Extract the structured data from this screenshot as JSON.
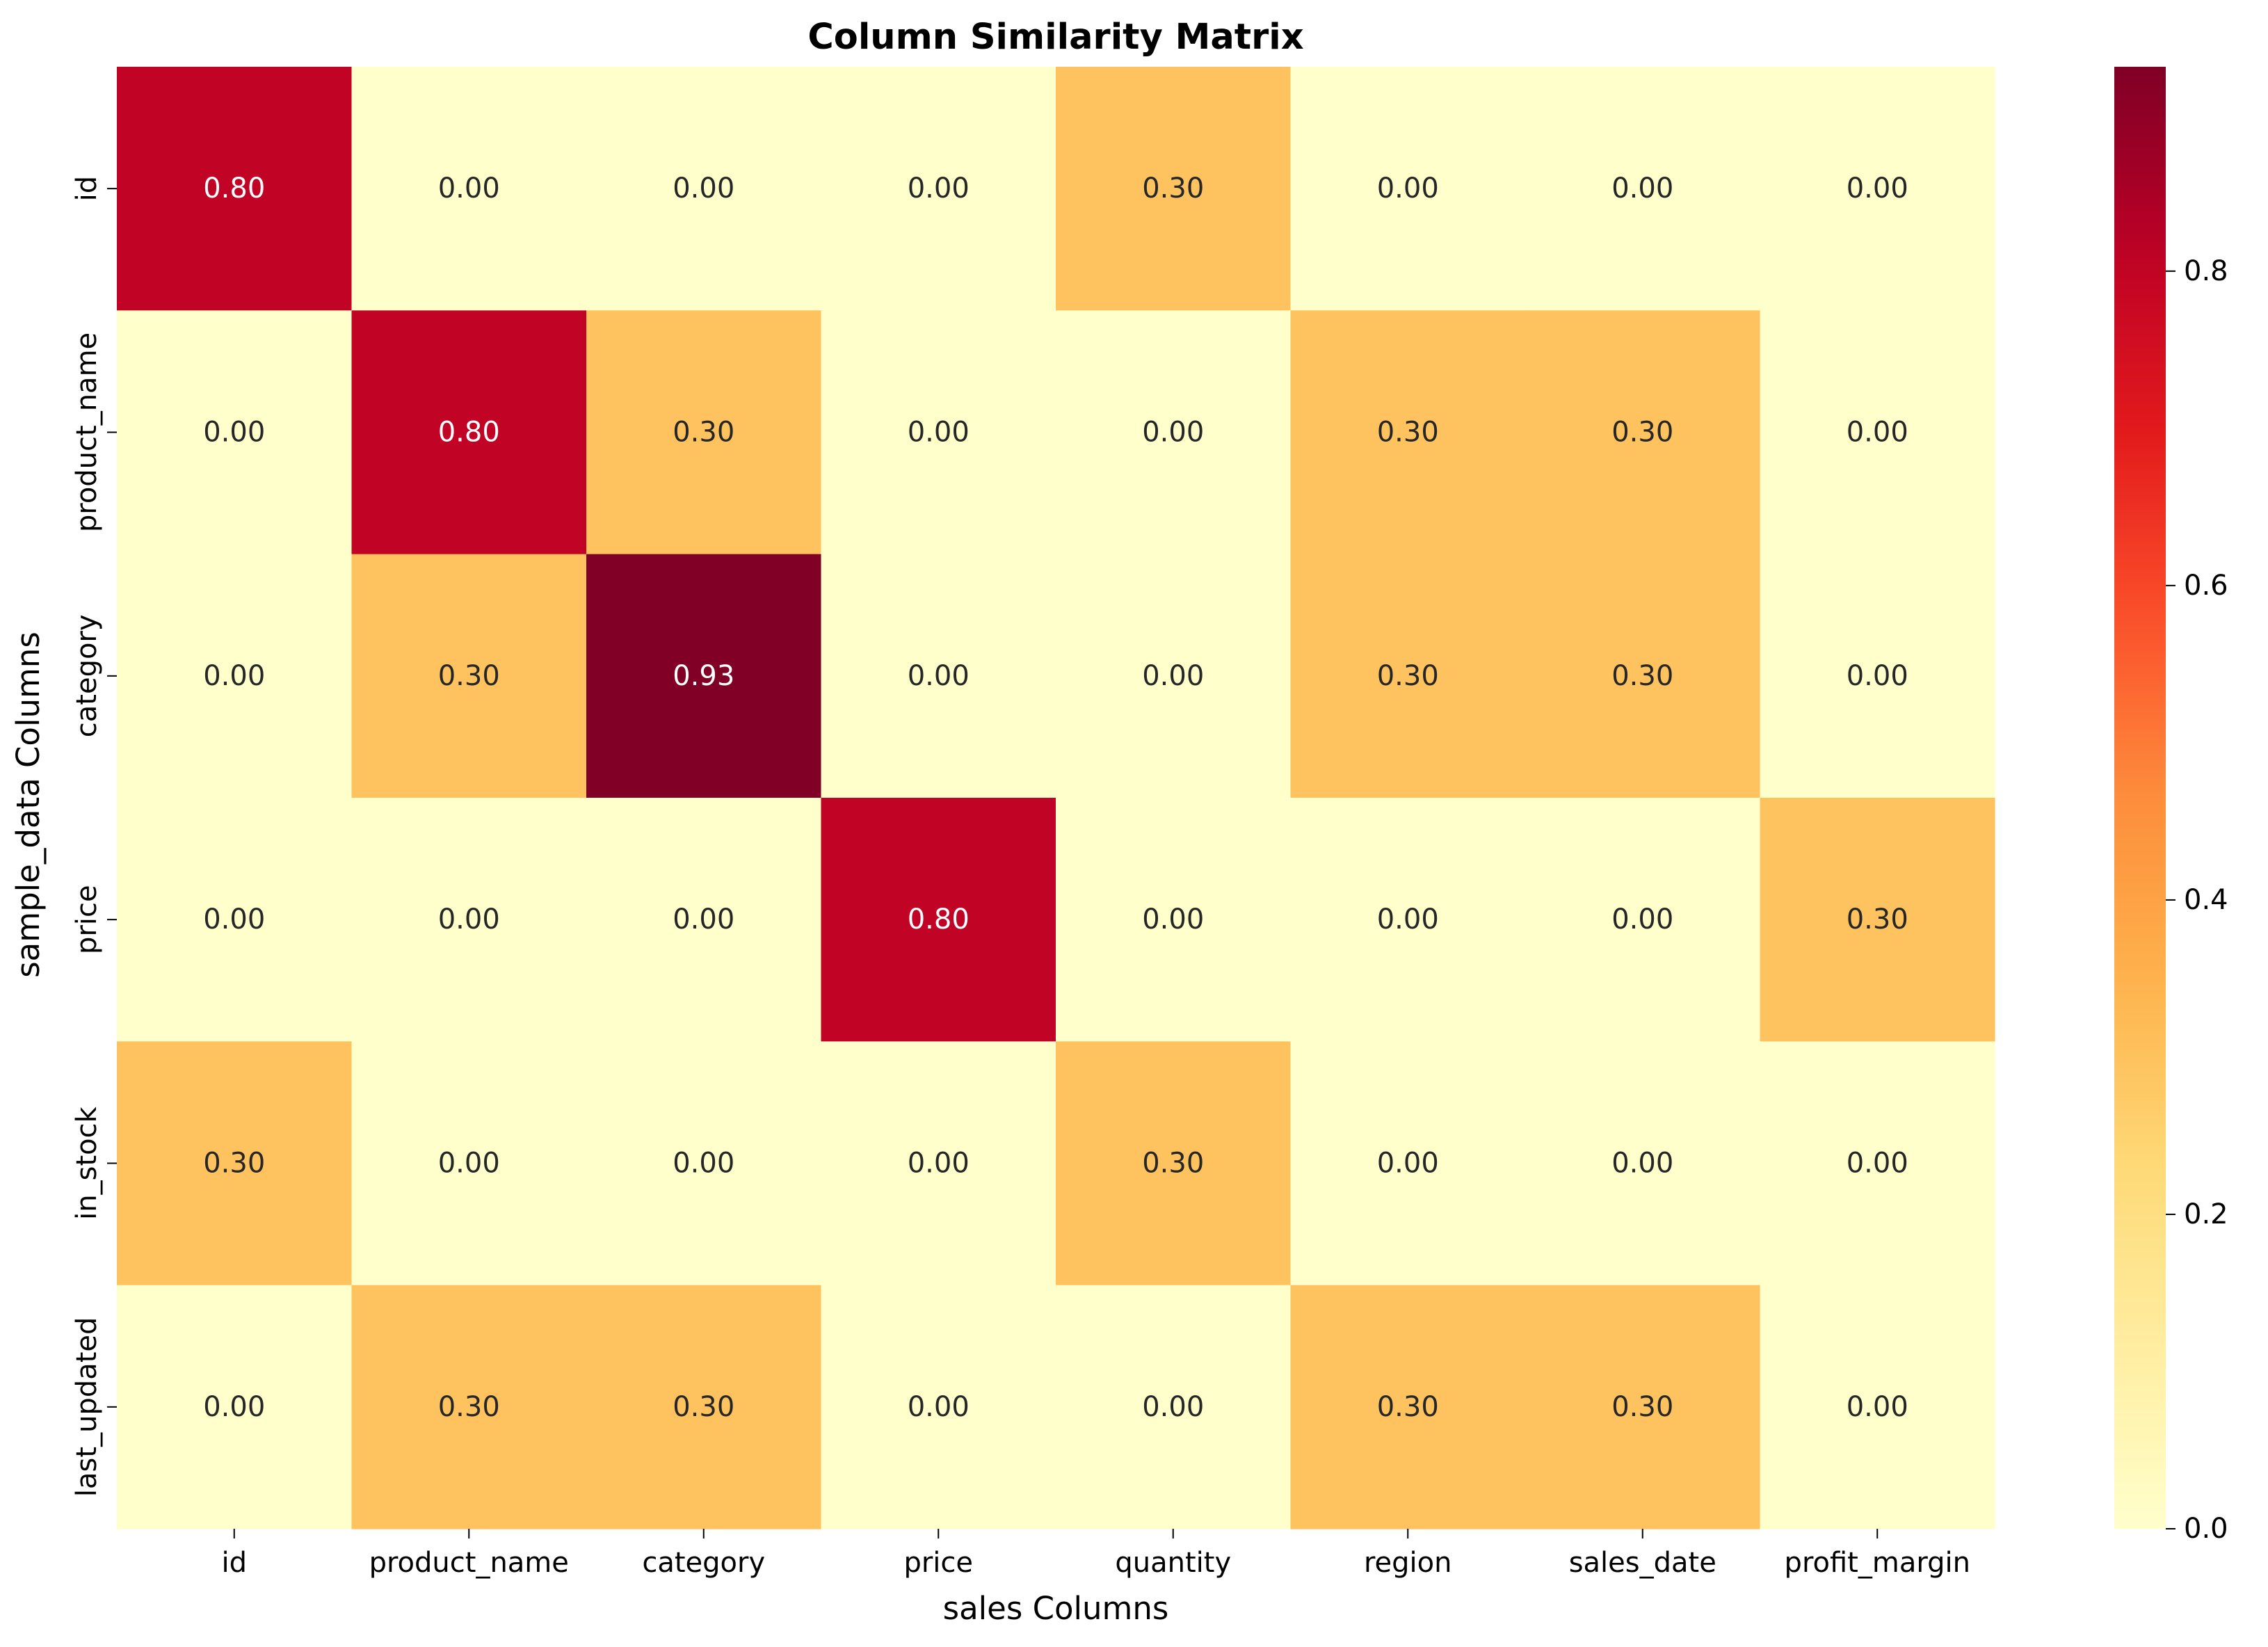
{
  "chart_data": {
    "type": "heatmap",
    "title": "Column Similarity Matrix",
    "xlabel": "sales Columns",
    "ylabel": "sample_data Columns",
    "x_categories": [
      "id",
      "product_name",
      "category",
      "price",
      "quantity",
      "region",
      "sales_date",
      "profit_margin"
    ],
    "y_categories": [
      "id",
      "product_name",
      "category",
      "price",
      "in_stock",
      "last_updated"
    ],
    "values": [
      [
        0.8,
        0.0,
        0.0,
        0.0,
        0.3,
        0.0,
        0.0,
        0.0
      ],
      [
        0.0,
        0.8,
        0.3,
        0.0,
        0.0,
        0.3,
        0.3,
        0.0
      ],
      [
        0.0,
        0.3,
        0.93,
        0.0,
        0.0,
        0.3,
        0.3,
        0.0
      ],
      [
        0.0,
        0.0,
        0.0,
        0.8,
        0.0,
        0.0,
        0.0,
        0.3
      ],
      [
        0.3,
        0.0,
        0.0,
        0.0,
        0.3,
        0.0,
        0.0,
        0.0
      ],
      [
        0.0,
        0.3,
        0.3,
        0.0,
        0.0,
        0.3,
        0.3,
        0.0
      ]
    ],
    "value_format": "0.00",
    "colormap": "YlOrRd",
    "color_range": [
      0.0,
      0.93
    ],
    "colorbar_ticks": [
      "0.0",
      "0.2",
      "0.4",
      "0.6",
      "0.8"
    ],
    "colorbar_tick_values": [
      0.0,
      0.2,
      0.4,
      0.6,
      0.8
    ],
    "colors": {
      "cell_low": "#ffffcc",
      "cell_mid": "#fec15c",
      "cell_high": "#c20a22",
      "cell_max": "#800026",
      "text_dark": "#262626",
      "text_light": "#ffffff"
    }
  }
}
